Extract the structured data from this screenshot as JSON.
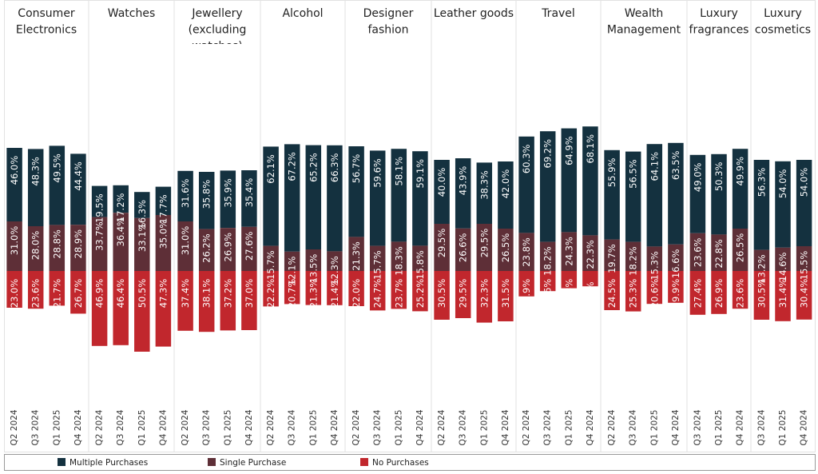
{
  "chart_data": {
    "type": "bar",
    "stacking": "diverging",
    "legend_placement": "bottom",
    "colors": {
      "Multiple Purchases": "#14313f",
      "Single Purchase": "#5e2f37",
      "No Purchases": "#c1272d"
    },
    "legend": [
      "Multiple Purchases",
      "Single Purchase",
      "No Purchases"
    ],
    "panels": [
      {
        "title": [
          "Consumer",
          "Electronics"
        ],
        "categories": [
          "Q2 2024",
          "Q3 2024",
          "Q1 2025",
          "Q4 2024"
        ],
        "series": [
          {
            "name": "Multiple Purchases",
            "values": [
              46.0,
              48.3,
              49.5,
              44.4
            ]
          },
          {
            "name": "Single Purchase",
            "values": [
              31.0,
              28.0,
              28.8,
              28.9
            ]
          },
          {
            "name": "No Purchases",
            "values": [
              23.0,
              23.6,
              21.7,
              26.7
            ]
          }
        ]
      },
      {
        "title": [
          "Watches"
        ],
        "categories": [
          "Q2 2024",
          "Q3 2024",
          "Q1 2025",
          "Q4 2024"
        ],
        "series": [
          {
            "name": "Multiple Purchases",
            "values": [
              19.5,
              17.2,
              16.3,
              17.7
            ]
          },
          {
            "name": "Single Purchase",
            "values": [
              33.7,
              36.4,
              33.1,
              35.0
            ]
          },
          {
            "name": "No Purchases",
            "values": [
              46.9,
              46.4,
              50.5,
              47.3
            ]
          }
        ]
      },
      {
        "title": [
          "Jewellery",
          "(excluding",
          "watches)"
        ],
        "categories": [
          "Q2 2024",
          "Q3 2024",
          "Q1 2025",
          "Q4 2024"
        ],
        "series": [
          {
            "name": "Multiple Purchases",
            "values": [
              31.6,
              35.8,
              35.9,
              35.4
            ]
          },
          {
            "name": "Single Purchase",
            "values": [
              31.0,
              26.2,
              26.9,
              27.6
            ]
          },
          {
            "name": "No Purchases",
            "values": [
              37.4,
              38.1,
              37.2,
              37.0
            ]
          }
        ]
      },
      {
        "title": [
          "Alcohol"
        ],
        "categories": [
          "Q2 2024",
          "Q3 2024",
          "Q1 2025",
          "Q4 2024"
        ],
        "series": [
          {
            "name": "Multiple Purchases",
            "values": [
              62.1,
              67.2,
              65.2,
              66.3
            ]
          },
          {
            "name": "Single Purchase",
            "values": [
              15.7,
              12.1,
              13.5,
              12.3
            ]
          },
          {
            "name": "No Purchases",
            "values": [
              22.2,
              20.7,
              21.3,
              21.4
            ]
          }
        ]
      },
      {
        "title": [
          "Designer",
          "fashion"
        ],
        "categories": [
          "Q2 2024",
          "Q3 2024",
          "Q1 2025",
          "Q4 2024"
        ],
        "series": [
          {
            "name": "Multiple Purchases",
            "values": [
              56.7,
              59.6,
              58.1,
              59.1
            ]
          },
          {
            "name": "Single Purchase",
            "values": [
              21.3,
              15.7,
              18.3,
              15.8
            ]
          },
          {
            "name": "No Purchases",
            "values": [
              22.0,
              24.7,
              23.7,
              25.2
            ]
          }
        ]
      },
      {
        "title": [
          "Leather goods"
        ],
        "categories": [
          "Q2 2024",
          "Q3 2024",
          "Q1 2025",
          "Q4 2024"
        ],
        "series": [
          {
            "name": "Multiple Purchases",
            "values": [
              40.0,
              43.9,
              38.3,
              42.0
            ]
          },
          {
            "name": "Single Purchase",
            "values": [
              29.5,
              26.6,
              29.5,
              26.5
            ]
          },
          {
            "name": "No Purchases",
            "values": [
              30.5,
              29.5,
              32.3,
              31.5
            ]
          }
        ]
      },
      {
        "title": [
          "Travel"
        ],
        "categories": [
          "Q2 2024",
          "Q3 2024",
          "Q1 2025",
          "Q4 2024"
        ],
        "series": [
          {
            "name": "Multiple Purchases",
            "values": [
              60.3,
              69.2,
              64.9,
              68.1
            ]
          },
          {
            "name": "Single Purchase",
            "values": [
              23.8,
              18.2,
              24.3,
              22.3
            ]
          },
          {
            "name": "No Purchases",
            "values": [
              15.9,
              12.6,
              10.8,
              9.6
            ]
          }
        ]
      },
      {
        "title": [
          "Wealth",
          "Management"
        ],
        "categories": [
          "Q2 2024",
          "Q3 2024",
          "Q1 2025",
          "Q4 2024"
        ],
        "series": [
          {
            "name": "Multiple Purchases",
            "values": [
              55.9,
              56.5,
              64.1,
              63.5
            ]
          },
          {
            "name": "Single Purchase",
            "values": [
              19.7,
              18.2,
              15.3,
              16.6
            ]
          },
          {
            "name": "No Purchases",
            "values": [
              24.5,
              25.3,
              20.6,
              19.9
            ]
          }
        ]
      },
      {
        "title": [
          "Luxury",
          "fragrances"
        ],
        "categories": [
          "Q3 2024",
          "Q1 2025",
          "Q4 2024"
        ],
        "series": [
          {
            "name": "Multiple Purchases",
            "values": [
              49.0,
              50.3,
              49.9
            ]
          },
          {
            "name": "Single Purchase",
            "values": [
              23.6,
              22.8,
              26.5
            ]
          },
          {
            "name": "No Purchases",
            "values": [
              27.4,
              26.9,
              23.6
            ]
          }
        ]
      },
      {
        "title": [
          "Luxury",
          "cosmetics"
        ],
        "categories": [
          "Q3 2024",
          "Q1 2025",
          "Q4 2024"
        ],
        "series": [
          {
            "name": "Multiple Purchases",
            "values": [
              56.3,
              54.0,
              54.0
            ]
          },
          {
            "name": "Single Purchase",
            "values": [
              13.2,
              14.6,
              15.5
            ]
          },
          {
            "name": "No Purchases",
            "values": [
              30.5,
              31.4,
              30.4
            ]
          }
        ]
      }
    ]
  }
}
